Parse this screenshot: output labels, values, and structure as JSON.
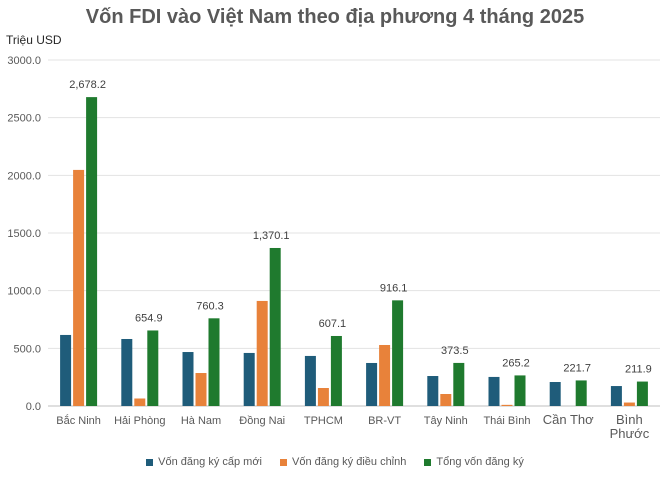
{
  "chart_data": {
    "type": "bar",
    "title": "Vốn FDI vào Việt Nam theo địa phương 4 tháng 2025",
    "xlabel": "",
    "ylabel": "Triệu USD",
    "ylim": [
      0,
      3000
    ],
    "yticks": [
      "0.0",
      "500.0",
      "1000.0",
      "1500.0",
      "2000.0",
      "2500.0",
      "3000.0"
    ],
    "grid": true,
    "legend_position": "bottom",
    "categories": [
      "Bắc Ninh",
      "Hải Phòng",
      "Hà Nam",
      "Đồng Nai",
      "TPHCM",
      "BR-VT",
      "Tây Ninh",
      "Thái Bình",
      "Cần Thơ",
      "Bình Phước"
    ],
    "series": [
      {
        "name": "Vốn đăng ký cấp mới",
        "color": "#1f5c7a",
        "values": [
          616,
          581,
          468,
          460,
          434,
          373,
          260,
          252,
          208,
          173
        ]
      },
      {
        "name": "Vốn đăng ký điều chỉnh",
        "color": "#e8823a",
        "values": [
          2047,
          65,
          286,
          911,
          156,
          529,
          104,
          10,
          0,
          30
        ]
      },
      {
        "name": "Tổng vốn đăng ký",
        "color": "#1f7a2e",
        "values": [
          2678.2,
          654.9,
          760.3,
          1370.1,
          607.1,
          916.1,
          373.5,
          265.2,
          221.7,
          211.9
        ]
      }
    ],
    "data_labels": [
      "2,678.2",
      "654.9",
      "760.3",
      "1,370.1",
      "607.1",
      "916.1",
      "373.5",
      "265.2",
      "221.7",
      "211.9"
    ]
  },
  "header": {
    "title": "Vốn FDI vào Việt Nam theo địa phương 4 tháng 2025",
    "unit": "Triệu USD"
  },
  "legend": {
    "items": [
      {
        "label": "Vốn đăng ký cấp mới",
        "color": "#1f5c7a"
      },
      {
        "label": "Vốn đăng ký điều chỉnh",
        "color": "#e8823a"
      },
      {
        "label": "Tổng vốn đăng ký",
        "color": "#1f7a2e"
      }
    ]
  }
}
